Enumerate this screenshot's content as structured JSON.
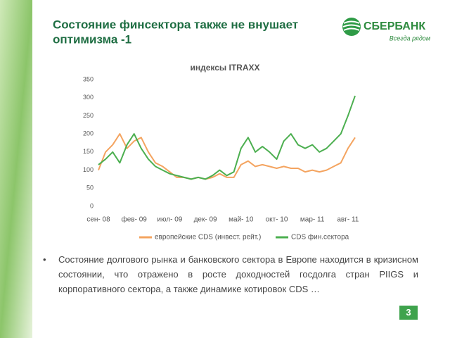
{
  "slide": {
    "title_line1": "Состояние финсектора также не внушает",
    "title_line2": "оптимизма -1",
    "logo_name": "СБЕРБАНК",
    "logo_slogan": "Всегда рядом",
    "bullet": "Состояние долгового рынка и банковского сектора в Европе находится в кризисном состоянии, что отражено в росте доходностей госдолга стран PIIGS и корпоративного сектора, а также динамике котировок CDS …",
    "page_number": "3"
  },
  "chart_data": {
    "type": "line",
    "title": "индексы ITRAXX",
    "categories": [
      "сен- 08",
      null,
      null,
      null,
      null,
      "фев- 09",
      null,
      null,
      null,
      null,
      "июл- 09",
      null,
      null,
      null,
      null,
      "дек- 09",
      null,
      null,
      null,
      null,
      "май- 10",
      null,
      null,
      null,
      null,
      "окт- 10",
      null,
      null,
      null,
      null,
      "мар- 11",
      null,
      null,
      null,
      null,
      "авг- 11",
      null
    ],
    "series": [
      {
        "name": "европейские CDS (инвест. рейт.)",
        "color": "#f4a460",
        "values": [
          100,
          150,
          170,
          200,
          160,
          180,
          190,
          150,
          120,
          110,
          95,
          80,
          80,
          75,
          80,
          75,
          80,
          90,
          80,
          80,
          115,
          125,
          110,
          115,
          110,
          105,
          110,
          105,
          105,
          95,
          100,
          95,
          100,
          110,
          120,
          160,
          190
        ]
      },
      {
        "name": "CDS фин.сектора",
        "color": "#4caf50",
        "values": [
          115,
          130,
          150,
          120,
          170,
          200,
          160,
          130,
          110,
          100,
          90,
          85,
          80,
          75,
          80,
          75,
          85,
          100,
          85,
          95,
          160,
          190,
          150,
          165,
          150,
          130,
          180,
          200,
          170,
          160,
          170,
          150,
          160,
          180,
          200,
          250,
          305
        ]
      }
    ],
    "ylim": [
      0,
      350
    ],
    "yticks": [
      0,
      50,
      100,
      150,
      200,
      250,
      300,
      350
    ],
    "grid": false,
    "legend": "bottom"
  }
}
